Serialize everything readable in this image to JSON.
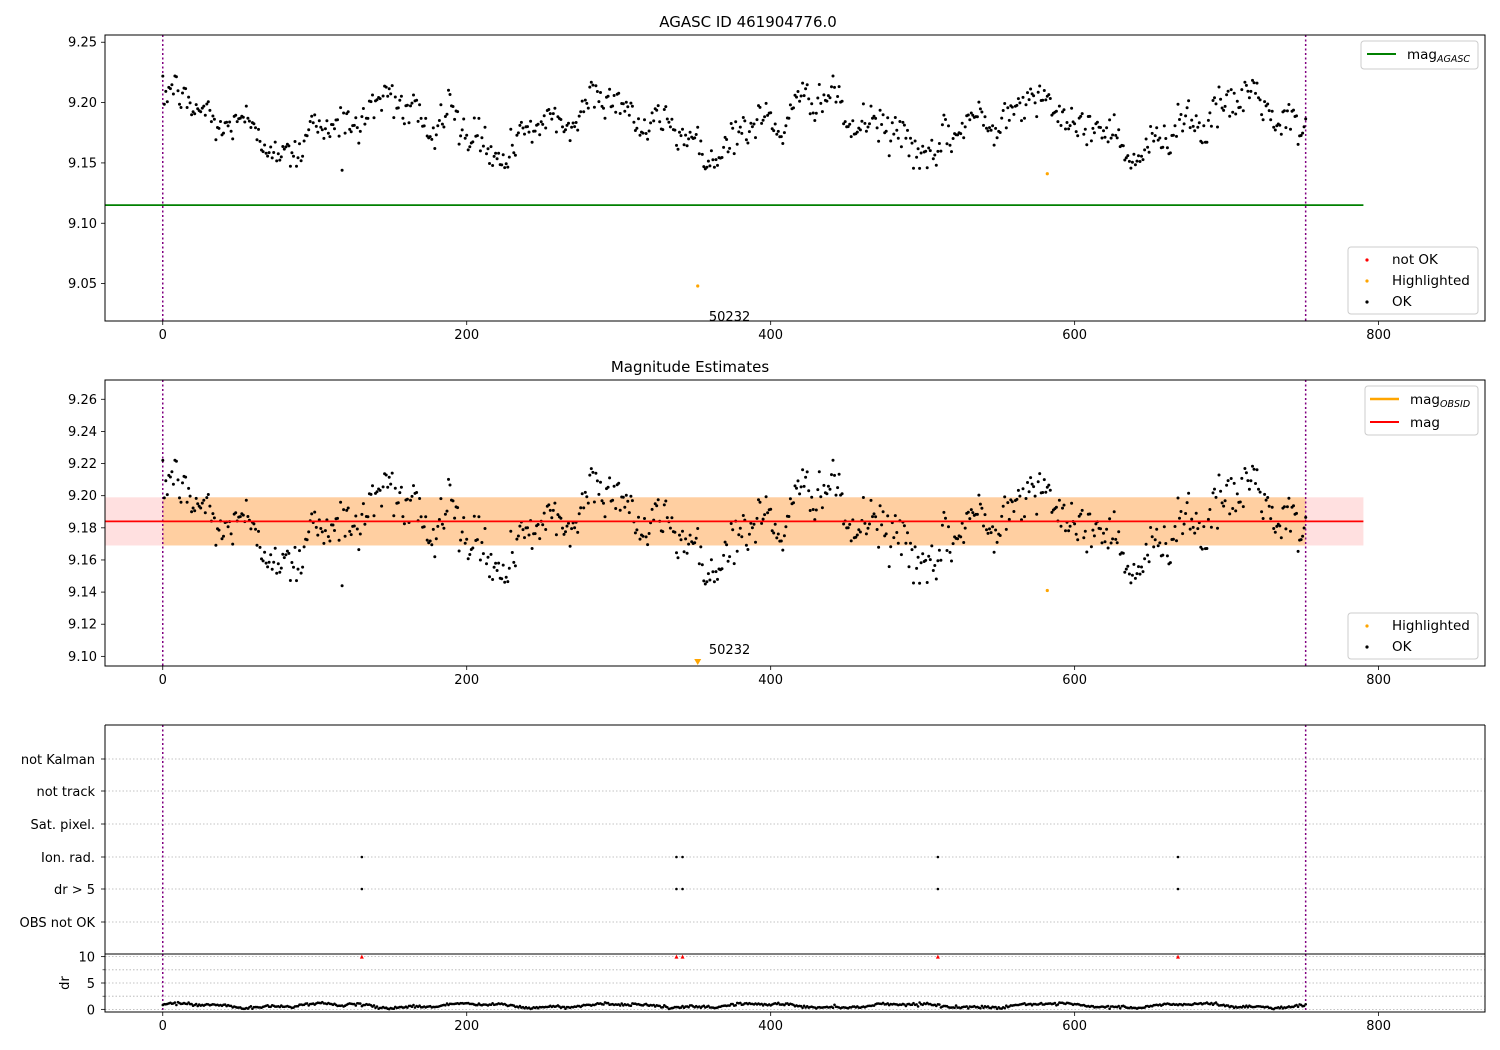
{
  "chart_data": [
    {
      "type": "scatter",
      "title": "AGASC ID 461904776.0",
      "xlim": [
        -38,
        870
      ],
      "ylim": [
        9.019,
        9.256
      ],
      "xticks": [
        "0",
        "200",
        "400",
        "600",
        "800"
      ],
      "yticks": [
        "9.05",
        "9.10",
        "9.15",
        "9.20",
        "9.25"
      ],
      "series": [
        {
          "name": "not OK",
          "color": "#ff0000",
          "points": []
        },
        {
          "name": "Highlighted",
          "color": "#ffa500",
          "points": [
            [
              352,
              9.048
            ],
            [
              582,
              9.141
            ]
          ]
        },
        {
          "name": "OK",
          "color": "#000000",
          "description": "approximately 750 magnitude samples for obs index 0–752, fluctuating between 9.145 and 9.223 with slow oscillation around 9.18"
        }
      ],
      "lines": [
        {
          "name": "mag",
          "subscript": "AGASC",
          "color": "#008000",
          "y": 9.115,
          "x": [
            -38,
            790
          ]
        }
      ],
      "vlines": [
        0,
        752
      ],
      "annotations": [
        {
          "text": "50232",
          "x": 360,
          "y": 9.029
        }
      ],
      "legend_upper": "upper-right",
      "legend_lower": "lower-right"
    },
    {
      "type": "scatter",
      "title": "Magnitude Estimates",
      "xlim": [
        -38,
        870
      ],
      "ylim": [
        9.094,
        9.272
      ],
      "xticks": [
        "0",
        "200",
        "400",
        "600",
        "800"
      ],
      "yticks": [
        "9.10",
        "9.12",
        "9.14",
        "9.16",
        "9.18",
        "9.20",
        "9.22",
        "9.24",
        "9.26"
      ],
      "series": [
        {
          "name": "Highlighted",
          "color": "#ffa500",
          "points": [
            [
              582,
              9.141
            ]
          ]
        },
        {
          "name": "OK",
          "color": "#000000"
        }
      ],
      "lines": [
        {
          "name": "mag",
          "subscript": "OBSID",
          "color": "#ffa500",
          "y1": 9.169,
          "y2": 9.199,
          "x": [
            0,
            752
          ]
        },
        {
          "name": "mag",
          "color": "#ff0000",
          "y": 9.184,
          "y1": 9.169,
          "y2": 9.199,
          "x": [
            -38,
            790
          ]
        }
      ],
      "vlines": [
        0,
        752
      ],
      "arrow": {
        "x": 352,
        "color": "#ffa500"
      },
      "annotations": [
        {
          "text": "50232",
          "x": 360,
          "y": 9.099
        }
      ],
      "legend_upper": "upper-right",
      "legend_lower": "lower-right"
    },
    {
      "type": "scatter",
      "title": "",
      "xlim": [
        -38,
        870
      ],
      "categories": [
        "not Kalman",
        "not track",
        "Sat. pixel.",
        "Ion. rad.",
        "dr > 5",
        "OBS not OK"
      ],
      "flags": {
        "Ion. rad.": [
          131,
          338,
          342,
          510,
          668
        ],
        "dr > 5": [
          131,
          338,
          342,
          510,
          668
        ]
      },
      "vlines": [
        0,
        752
      ]
    },
    {
      "type": "scatter",
      "title": "",
      "ylabel": "dr",
      "xlim": [
        -38,
        870
      ],
      "ylim": [
        -0.5,
        10.5
      ],
      "xticks": [
        "0",
        "200",
        "400",
        "600",
        "800"
      ],
      "yticks": [
        "0",
        "5",
        "10"
      ],
      "series": [
        {
          "name": "dr",
          "color": "#000000",
          "description": "dr values mostly 0.2–1.5 across obs index 0–752"
        },
        {
          "name": "clipped",
          "color": "#ff0000",
          "x": [
            131,
            338,
            342,
            510,
            668
          ],
          "y": 10
        }
      ],
      "vlines": [
        0,
        752
      ]
    }
  ]
}
